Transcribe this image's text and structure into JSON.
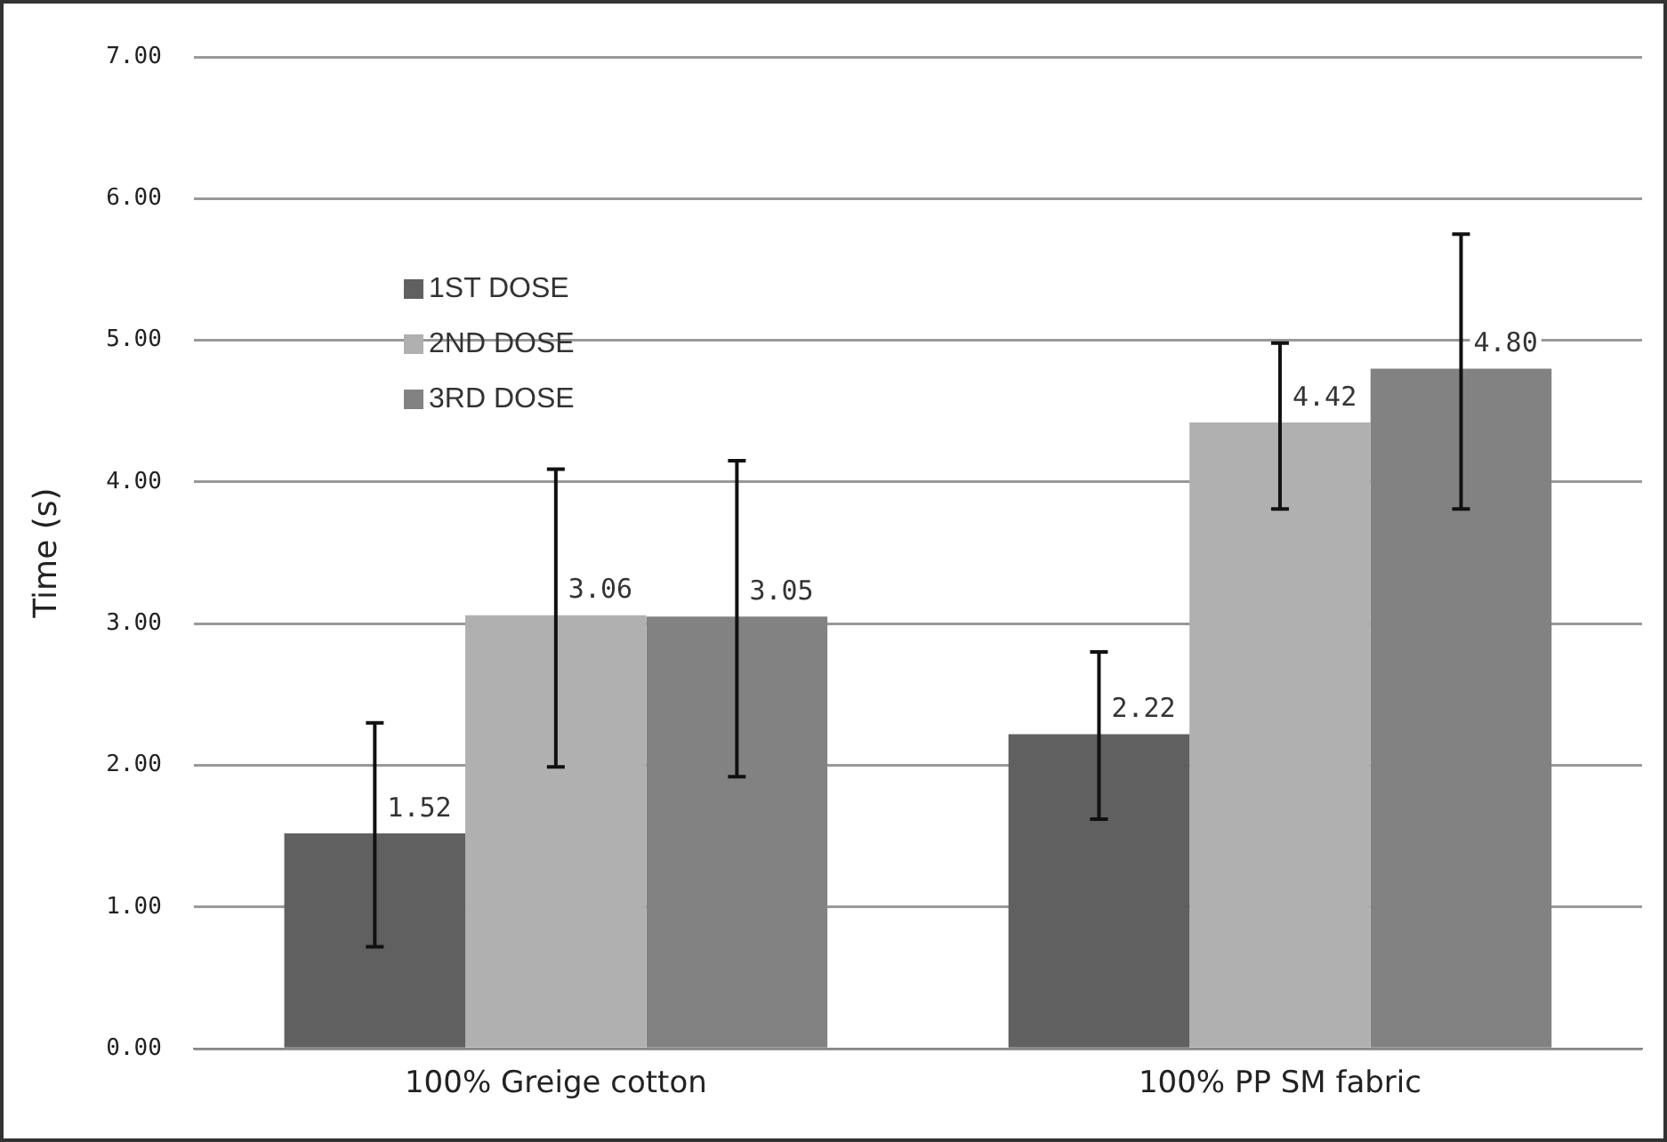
{
  "chart_data": {
    "type": "bar",
    "ylabel": "Time (s)",
    "categories": [
      "100% Greige cotton",
      "100% PP SM fabric"
    ],
    "series": [
      {
        "name": "1ST DOSE",
        "color": "#606060",
        "values": [
          1.52,
          2.22
        ],
        "value_labels": [
          "1.52",
          "2.22"
        ],
        "errors": [
          [
            0.72,
            2.3
          ],
          [
            1.62,
            2.8
          ]
        ]
      },
      {
        "name": "2ND DOSE",
        "color": "#b0b0b0",
        "values": [
          3.06,
          4.42
        ],
        "value_labels": [
          "3.06",
          "4.42"
        ],
        "errors": [
          [
            1.99,
            4.09
          ],
          [
            3.81,
            4.98
          ]
        ]
      },
      {
        "name": "3RD DOSE",
        "color": "#828282",
        "values": [
          3.05,
          4.8
        ],
        "value_labels": [
          "3.05",
          "4.80"
        ],
        "errors": [
          [
            1.92,
            4.15
          ],
          [
            3.81,
            5.75
          ]
        ]
      }
    ],
    "ylim": [
      0,
      7
    ],
    "yticks": [
      {
        "value": 0,
        "label": "0.00"
      },
      {
        "value": 1,
        "label": "1.00"
      },
      {
        "value": 2,
        "label": "2.00"
      },
      {
        "value": 3,
        "label": "3.00"
      },
      {
        "value": 4,
        "label": "4.00"
      },
      {
        "value": 5,
        "label": "5.00"
      },
      {
        "value": 6,
        "label": "6.00"
      },
      {
        "value": 7,
        "label": "7.00"
      }
    ],
    "grid": "y",
    "legend": "top left"
  }
}
